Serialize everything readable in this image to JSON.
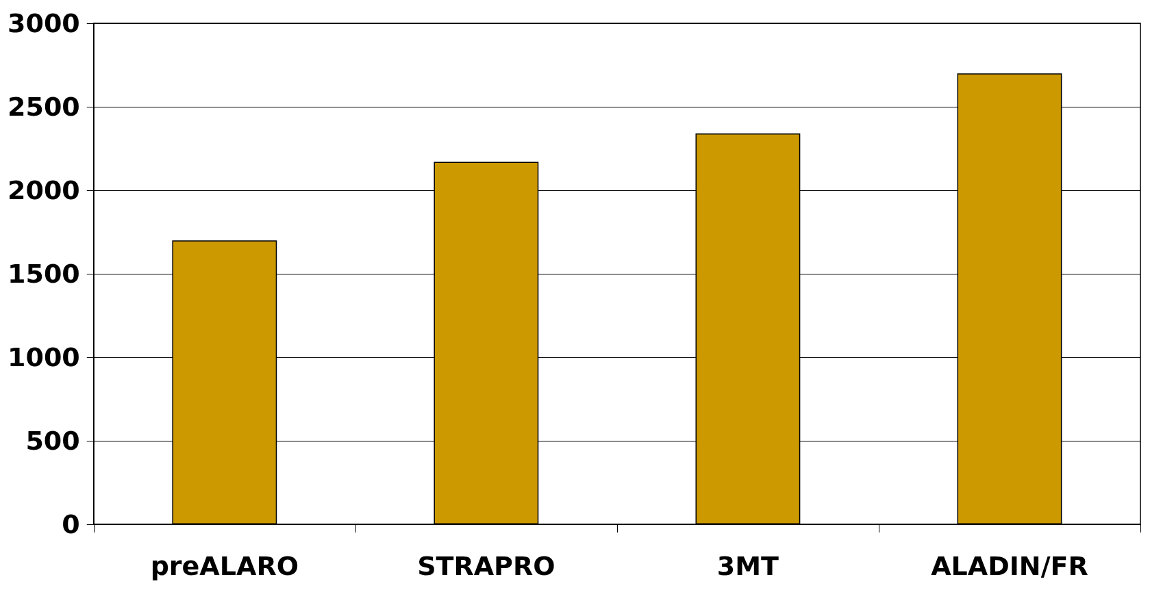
{
  "chart_data": {
    "type": "bar",
    "categories": [
      "preALARO",
      "STRAPRO",
      "3MT",
      "ALADIN/FR"
    ],
    "values": [
      1700,
      2170,
      2340,
      2700
    ],
    "color": "#cc9900",
    "ylim": [
      0,
      3000
    ],
    "yticks": [
      0,
      500,
      1000,
      1500,
      2000,
      2500,
      3000
    ],
    "grid": "y"
  }
}
